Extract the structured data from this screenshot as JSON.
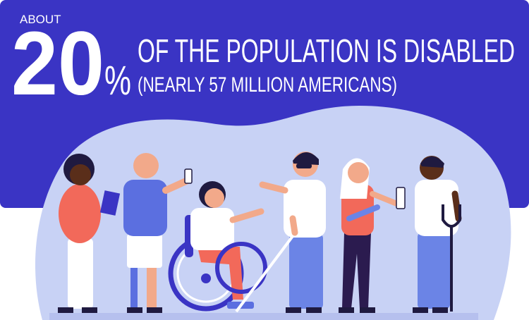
{
  "header": {
    "prefix": "ABOUT",
    "big_number": "20",
    "big_unit": "%",
    "headline": "OF THE POPULATION IS DISABLED",
    "subline": "(NEARLY 57 MILLION AMERICANS)"
  }
}
